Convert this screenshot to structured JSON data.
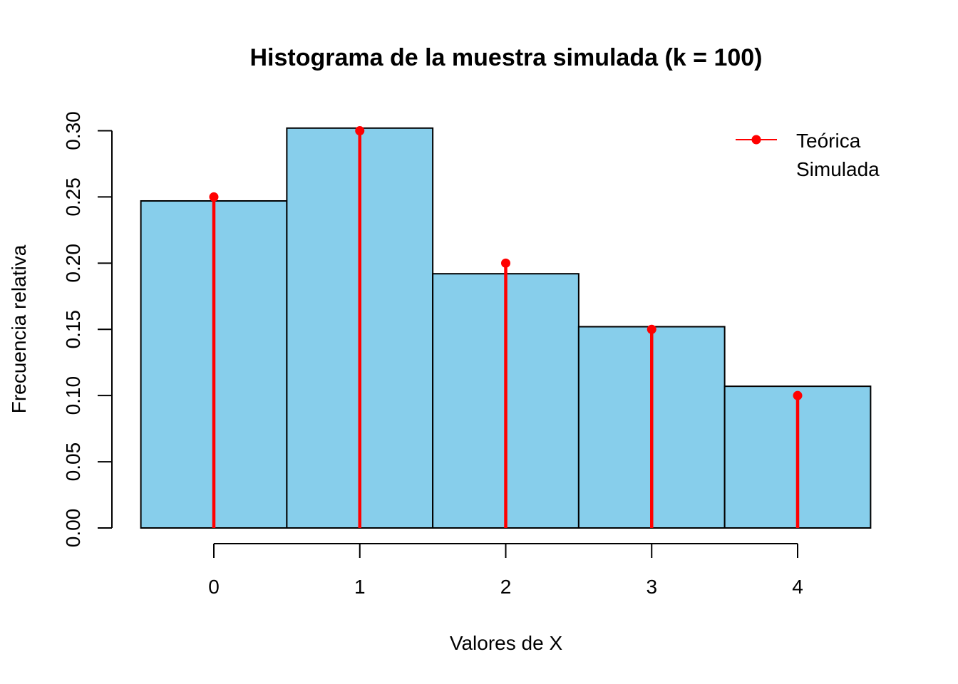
{
  "chart_data": {
    "type": "bar",
    "title": "Histograma de la muestra simulada (k = 100)",
    "xlabel": "Valores de X",
    "ylabel": "Frecuencia relativa",
    "categories": [
      "0",
      "1",
      "2",
      "3",
      "4"
    ],
    "x_values": [
      0,
      1,
      2,
      3,
      4
    ],
    "x_tick_labels": [
      "0",
      "1",
      "2",
      "3",
      "4"
    ],
    "y_ticks": [
      0.0,
      0.05,
      0.1,
      0.15,
      0.2,
      0.25,
      0.3
    ],
    "y_tick_labels": [
      "0.00",
      "0.05",
      "0.10",
      "0.15",
      "0.20",
      "0.25",
      "0.30"
    ],
    "ylim": [
      0,
      0.3
    ],
    "xlim": [
      -0.5,
      4.5
    ],
    "grid": false,
    "legend_position": "top-right",
    "series": [
      {
        "name": "Simulada",
        "kind": "histogram",
        "values": [
          0.247,
          0.302,
          0.192,
          0.152,
          0.107
        ],
        "fill": "#87CEEB",
        "stroke": "#000000"
      },
      {
        "name": "Teórica",
        "kind": "lollipop",
        "values": [
          0.25,
          0.3,
          0.2,
          0.15,
          0.1
        ],
        "color": "#FF0000"
      }
    ]
  }
}
